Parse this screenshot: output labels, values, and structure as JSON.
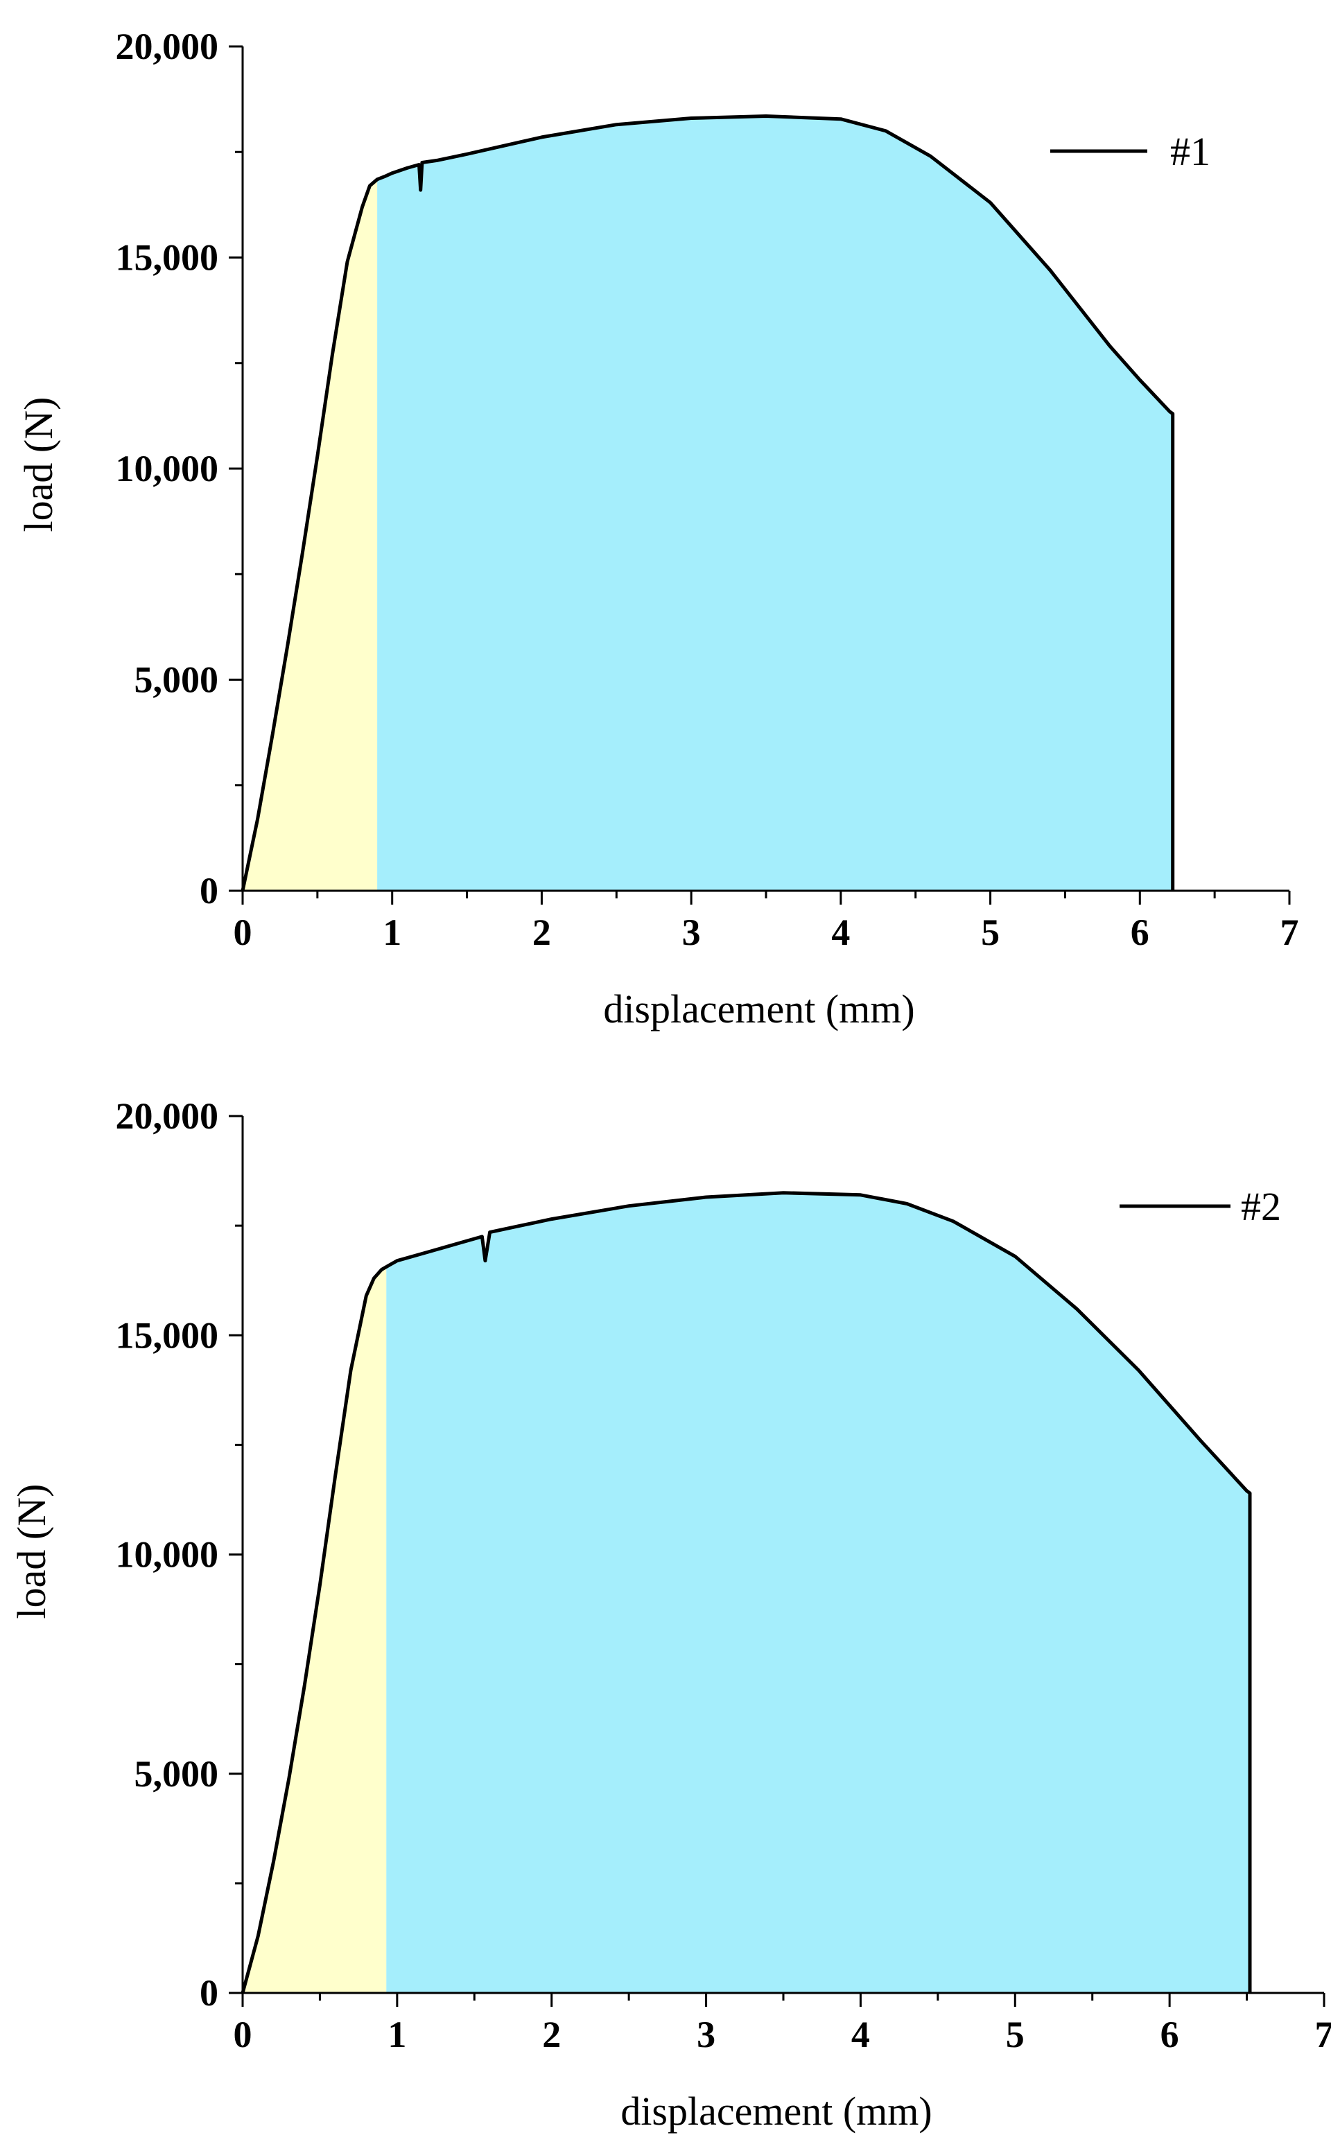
{
  "chart_data": [
    {
      "type": "area",
      "xlabel": "displacement (mm)",
      "ylabel": "load (N)",
      "xlim": [
        0,
        7
      ],
      "ylim": [
        0,
        20000
      ],
      "x_ticks": [
        0,
        1,
        2,
        3,
        4,
        5,
        6,
        7
      ],
      "y_ticks": [
        0,
        5000,
        10000,
        15000,
        20000
      ],
      "x_tick_labels": [
        "0",
        "1",
        "2",
        "3",
        "4",
        "5",
        "6",
        "7"
      ],
      "y_tick_labels": [
        "0",
        "5,000",
        "10,000",
        "15,000",
        "20,000"
      ],
      "legend_position": "top-right",
      "grid": false,
      "series": [
        {
          "name": "#1",
          "color": "#000000",
          "x": [
            0,
            0.1,
            0.2,
            0.3,
            0.4,
            0.5,
            0.6,
            0.7,
            0.8,
            0.85,
            0.9,
            0.95,
            1.0,
            1.1,
            1.18,
            1.19,
            1.2,
            1.3,
            1.5,
            2.0,
            2.5,
            3.0,
            3.5,
            4.0,
            4.3,
            4.6,
            5.0,
            5.4,
            5.8,
            6.0,
            6.2,
            6.22,
            6.22
          ],
          "y": [
            0,
            1700,
            3700,
            5800,
            8000,
            10300,
            12700,
            14900,
            16200,
            16700,
            16850,
            16920,
            17000,
            17120,
            17200,
            16600,
            17250,
            17300,
            17450,
            17850,
            18150,
            18300,
            18350,
            18280,
            18000,
            17400,
            16300,
            14700,
            12900,
            12100,
            11350,
            11300,
            0
          ]
        }
      ],
      "shaded_regions": [
        {
          "color": "#ffffcc",
          "x_from": 0,
          "x_to": 0.9
        },
        {
          "color": "#a5eefc",
          "x_from": 0.9,
          "x_to": 6.22
        }
      ]
    },
    {
      "type": "area",
      "xlabel": "displacement (mm)",
      "ylabel": "load (N)",
      "xlim": [
        0,
        7
      ],
      "ylim": [
        0,
        20000
      ],
      "x_ticks": [
        0,
        1,
        2,
        3,
        4,
        5,
        6,
        7
      ],
      "y_ticks": [
        0,
        5000,
        10000,
        15000,
        20000
      ],
      "x_tick_labels": [
        "0",
        "1",
        "2",
        "3",
        "4",
        "5",
        "6",
        "7"
      ],
      "y_tick_labels": [
        "0",
        "5,000",
        "10,000",
        "15,000",
        "20,000"
      ],
      "legend_position": "top-right",
      "grid": false,
      "series": [
        {
          "name": "#2",
          "color": "#000000",
          "x": [
            0,
            0.1,
            0.2,
            0.3,
            0.4,
            0.5,
            0.6,
            0.7,
            0.8,
            0.85,
            0.9,
            0.95,
            1.0,
            1.2,
            1.4,
            1.55,
            1.57,
            1.6,
            1.8,
            2.0,
            2.5,
            3.0,
            3.5,
            4.0,
            4.3,
            4.6,
            5.0,
            5.4,
            5.8,
            6.2,
            6.5,
            6.52,
            6.52
          ],
          "y": [
            0,
            1300,
            3000,
            4900,
            7000,
            9300,
            11800,
            14200,
            15900,
            16300,
            16500,
            16600,
            16700,
            16900,
            17100,
            17250,
            16700,
            17350,
            17500,
            17650,
            17950,
            18150,
            18250,
            18200,
            18000,
            17600,
            16800,
            15600,
            14200,
            12600,
            11450,
            11400,
            0
          ]
        }
      ],
      "shaded_regions": [
        {
          "color": "#ffffcc",
          "x_from": 0,
          "x_to": 0.93
        },
        {
          "color": "#a5eefc",
          "x_from": 0.93,
          "x_to": 6.52
        }
      ]
    }
  ]
}
